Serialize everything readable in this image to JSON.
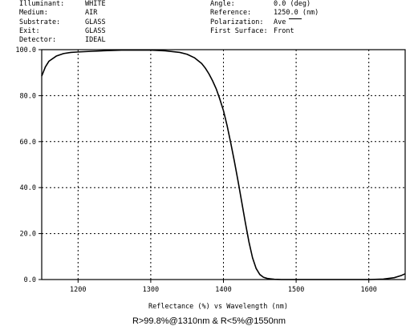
{
  "params_left": [
    {
      "key": "Illuminant:",
      "value": "WHITE"
    },
    {
      "key": "Medium:",
      "value": "AIR"
    },
    {
      "key": "Substrate:",
      "value": "GLASS"
    },
    {
      "key": "Exit:",
      "value": "GLASS"
    },
    {
      "key": "Detector:",
      "value": "IDEAL"
    }
  ],
  "params_right": [
    {
      "key": "Angle:",
      "value": "0.0 (deg)"
    },
    {
      "key": "Reference:",
      "value": "1250.0 (nm)"
    },
    {
      "key": "Polarization:",
      "value": "Ave"
    },
    {
      "key": "First Surface:",
      "value": "Front"
    }
  ],
  "caption": "R>99.8%@1310nm & R<5%@1550nm",
  "chart_data": {
    "type": "line",
    "xlabel": "Reflectance (%) vs Wavelength (nm)",
    "ylabel": "",
    "xlim": [
      1150,
      1650
    ],
    "ylim": [
      0,
      100
    ],
    "x_ticks": [
      1200,
      1300,
      1400,
      1500,
      1600
    ],
    "y_ticks": [
      0,
      20,
      40,
      60,
      80,
      100
    ],
    "y_tick_labels": [
      "0.0",
      "20.0",
      "40.0",
      "60.0",
      "80.0",
      "100.0"
    ],
    "grid": true,
    "series": [
      {
        "color": "#000000",
        "x": [
          1150,
          1155,
          1160,
          1170,
          1180,
          1190,
          1200,
          1220,
          1240,
          1260,
          1280,
          1300,
          1320,
          1340,
          1350,
          1360,
          1370,
          1375,
          1380,
          1385,
          1390,
          1395,
          1400,
          1405,
          1410,
          1415,
          1420,
          1425,
          1430,
          1435,
          1440,
          1445,
          1450,
          1455,
          1460,
          1465,
          1470,
          1475,
          1480,
          1490,
          1500,
          1520,
          1550,
          1580,
          1600,
          1620,
          1635,
          1645,
          1650
        ],
        "y": [
          88.5,
          92.5,
          95,
          97.2,
          98.3,
          98.8,
          99.0,
          99.3,
          99.6,
          99.8,
          99.8,
          99.8,
          99.5,
          98.8,
          98.0,
          96.5,
          94.0,
          92.0,
          89.5,
          86.5,
          83.0,
          78.5,
          73.5,
          67.0,
          59.5,
          51.5,
          43.0,
          34.0,
          25.0,
          16.5,
          9.5,
          4.8,
          2.2,
          1.0,
          0.5,
          0.3,
          0.1,
          0.05,
          0.0,
          0.0,
          0.0,
          0.0,
          0.0,
          0.0,
          0.0,
          0.2,
          0.8,
          1.8,
          2.5
        ]
      }
    ]
  }
}
